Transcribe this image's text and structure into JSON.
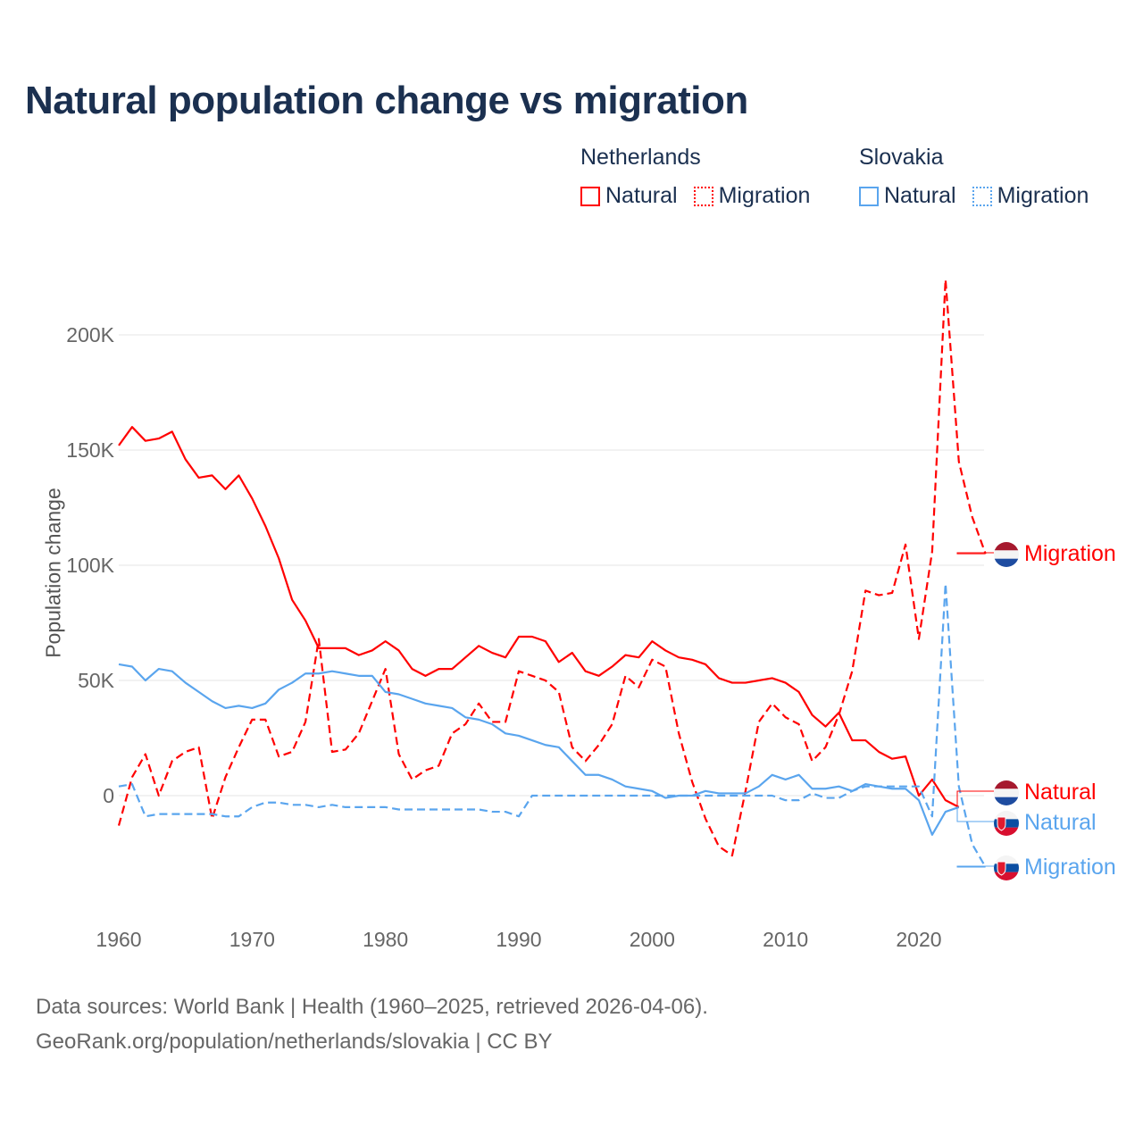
{
  "title": "Natural population change vs migration",
  "legend": {
    "groups": [
      {
        "country": "Netherlands",
        "items": [
          {
            "label": "Natural",
            "style": "solid"
          },
          {
            "label": "Migration",
            "style": "dotted"
          }
        ],
        "color": "#ff0000"
      },
      {
        "country": "Slovakia",
        "items": [
          {
            "label": "Natural",
            "style": "solid"
          },
          {
            "label": "Migration",
            "style": "dotted"
          }
        ],
        "color": "#5aa5ee"
      }
    ]
  },
  "footer": {
    "line1": "Data sources: World Bank | Health (1960–2025, retrieved 2026-04-06).",
    "line2": "GeoRank.org/population/netherlands/slovakia | CC BY"
  },
  "chart_data": {
    "type": "line",
    "title": "Natural population change vs migration",
    "xlabel": "",
    "ylabel": "Population change",
    "xlim": [
      1960,
      2025
    ],
    "ylim": [
      -45000,
      230000
    ],
    "x_ticks": [
      1960,
      1970,
      1980,
      1990,
      2000,
      2010,
      2020
    ],
    "x_tick_labels": [
      "1960",
      "1970",
      "1980",
      "1990",
      "2000",
      "2010",
      "2020"
    ],
    "y_ticks": [
      0,
      50000,
      100000,
      150000,
      200000
    ],
    "y_tick_labels": [
      "0",
      "50K",
      "100K",
      "150K",
      "200K"
    ],
    "grid": true,
    "legend_position": "top-right",
    "start_year": 1960,
    "series": [
      {
        "name": "Netherlands Natural",
        "end_label": "Natural",
        "flag": "netherlands",
        "color": "#ff0000",
        "dash": "solid",
        "values": [
          152,
          160,
          154,
          155,
          158,
          146,
          138,
          139,
          133,
          139,
          129,
          117,
          103,
          85,
          76,
          64,
          64,
          64,
          61,
          63,
          67,
          63,
          55,
          52,
          55,
          55,
          60,
          65,
          62,
          60,
          69,
          69,
          67,
          58,
          62,
          54,
          52,
          56,
          61,
          60,
          67,
          63,
          60,
          59,
          57,
          51,
          49,
          49,
          50,
          51,
          49,
          45,
          35,
          30,
          36,
          24,
          24,
          19,
          16,
          17,
          0,
          7,
          -2,
          -5
        ]
      },
      {
        "name": "Netherlands Migration",
        "end_label": "Migration",
        "flag": "netherlands",
        "color": "#ff0000",
        "dash": "dashed",
        "values": [
          -13,
          8,
          18,
          0,
          15,
          19,
          21,
          -10,
          8,
          21,
          33,
          33,
          17,
          19,
          32,
          68,
          19,
          20,
          27,
          41,
          55,
          18,
          7,
          11,
          13,
          27,
          31,
          40,
          32,
          32,
          54,
          52,
          50,
          45,
          21,
          15,
          22,
          31,
          52,
          47,
          59,
          56,
          27,
          6,
          -10,
          -22,
          -26,
          2,
          32,
          40,
          34,
          31,
          15,
          21,
          35,
          54,
          89,
          87,
          88,
          109,
          68,
          106,
          224,
          145,
          121,
          105
        ]
      },
      {
        "name": "Slovakia Natural",
        "end_label": "Natural",
        "flag": "slovakia",
        "color": "#5aa5ee",
        "dash": "solid",
        "values": [
          57,
          56,
          50,
          55,
          54,
          49,
          45,
          41,
          38,
          39,
          38,
          40,
          46,
          49,
          53,
          53,
          54,
          53,
          52,
          52,
          45,
          44,
          42,
          40,
          39,
          38,
          34,
          33,
          31,
          27,
          26,
          24,
          22,
          21,
          15,
          9,
          9,
          7,
          4,
          3,
          2,
          -1,
          0,
          0,
          2,
          1,
          1,
          1,
          4,
          9,
          7,
          9,
          3,
          3,
          4,
          2,
          5,
          4,
          3,
          3,
          -2,
          -17,
          -7,
          -5
        ]
      },
      {
        "name": "Slovakia Migration",
        "end_label": "Migration",
        "flag": "slovakia",
        "color": "#5aa5ee",
        "dash": "dashed",
        "values": [
          4,
          5,
          -9,
          -8,
          -8,
          -8,
          -8,
          -8,
          -9,
          -9,
          -5,
          -3,
          -3,
          -4,
          -4,
          -5,
          -4,
          -5,
          -5,
          -5,
          -5,
          -6,
          -6,
          -6,
          -6,
          -6,
          -6,
          -6,
          -7,
          -7,
          -9,
          0,
          0,
          0,
          0,
          0,
          0,
          0,
          0,
          0,
          0,
          0,
          0,
          0,
          0,
          0,
          0,
          0,
          0,
          0,
          -2,
          -2,
          1,
          -1,
          -1,
          2,
          4,
          4,
          4,
          4,
          4,
          -9,
          92,
          4,
          -21,
          -31
        ]
      }
    ],
    "value_unit": "thousands"
  }
}
